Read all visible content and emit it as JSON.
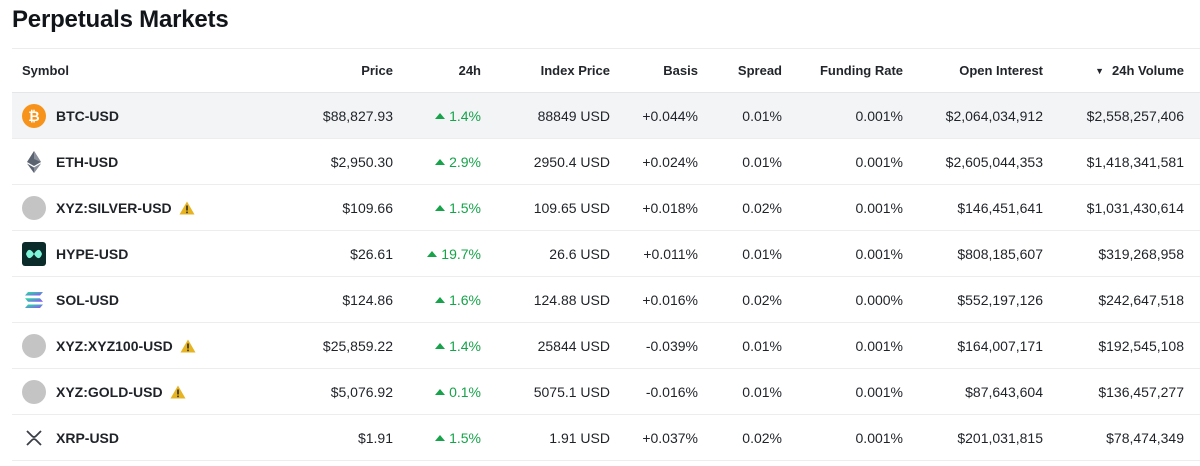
{
  "page": {
    "title": "Perpetuals Markets"
  },
  "columns": {
    "symbol": "Symbol",
    "price": "Price",
    "change": "24h",
    "index_price": "Index Price",
    "basis": "Basis",
    "spread": "Spread",
    "funding_rate": "Funding Rate",
    "open_interest": "Open Interest",
    "volume": "24h Volume",
    "sort_indicator": "▼"
  },
  "colors": {
    "positive": "#16a34a",
    "warning": "#e6b422",
    "btc": "#f7931a"
  },
  "rows": [
    {
      "symbol": "BTC-USD",
      "icon": "bitcoin-icon",
      "warning": false,
      "price": "$88,827.93",
      "change": "1.4%",
      "index_price": "88849 USD",
      "basis": "+0.044%",
      "spread": "0.01%",
      "funding_rate": "0.001%",
      "open_interest": "$2,064,034,912",
      "volume": "$2,558,257,406"
    },
    {
      "symbol": "ETH-USD",
      "icon": "ethereum-icon",
      "warning": false,
      "price": "$2,950.30",
      "change": "2.9%",
      "index_price": "2950.4 USD",
      "basis": "+0.024%",
      "spread": "0.01%",
      "funding_rate": "0.001%",
      "open_interest": "$2,605,044,353",
      "volume": "$1,418,341,581"
    },
    {
      "symbol": "XYZ:SILVER-USD",
      "icon": "placeholder-coin-icon",
      "warning": true,
      "price": "$109.66",
      "change": "1.5%",
      "index_price": "109.65 USD",
      "basis": "+0.018%",
      "spread": "0.02%",
      "funding_rate": "0.001%",
      "open_interest": "$146,451,641",
      "volume": "$1,031,430,614"
    },
    {
      "symbol": "HYPE-USD",
      "icon": "hyperliquid-icon",
      "warning": false,
      "price": "$26.61",
      "change": "19.7%",
      "index_price": "26.6 USD",
      "basis": "+0.011%",
      "spread": "0.01%",
      "funding_rate": "0.001%",
      "open_interest": "$808,185,607",
      "volume": "$319,268,958"
    },
    {
      "symbol": "SOL-USD",
      "icon": "solana-icon",
      "warning": false,
      "price": "$124.86",
      "change": "1.6%",
      "index_price": "124.88 USD",
      "basis": "+0.016%",
      "spread": "0.02%",
      "funding_rate": "0.000%",
      "open_interest": "$552,197,126",
      "volume": "$242,647,518"
    },
    {
      "symbol": "XYZ:XYZ100-USD",
      "icon": "placeholder-coin-icon",
      "warning": true,
      "price": "$25,859.22",
      "change": "1.4%",
      "index_price": "25844 USD",
      "basis": "-0.039%",
      "spread": "0.01%",
      "funding_rate": "0.001%",
      "open_interest": "$164,007,171",
      "volume": "$192,545,108"
    },
    {
      "symbol": "XYZ:GOLD-USD",
      "icon": "placeholder-coin-icon",
      "warning": true,
      "price": "$5,076.92",
      "change": "0.1%",
      "index_price": "5075.1 USD",
      "basis": "-0.016%",
      "spread": "0.01%",
      "funding_rate": "0.001%",
      "open_interest": "$87,643,604",
      "volume": "$136,457,277"
    },
    {
      "symbol": "XRP-USD",
      "icon": "xrp-icon",
      "warning": false,
      "price": "$1.91",
      "change": "1.5%",
      "index_price": "1.91 USD",
      "basis": "+0.037%",
      "spread": "0.02%",
      "funding_rate": "0.001%",
      "open_interest": "$201,031,815",
      "volume": "$78,474,349"
    }
  ]
}
